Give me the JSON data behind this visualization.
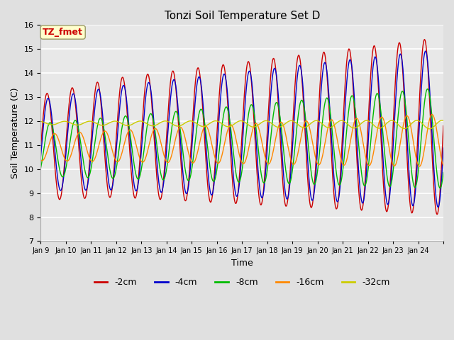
{
  "title": "Tonzi Soil Temperature Set D",
  "xlabel": "Time",
  "ylabel": "Soil Temperature (C)",
  "ylim": [
    7.0,
    16.0
  ],
  "yticks": [
    7.0,
    8.0,
    9.0,
    10.0,
    11.0,
    12.0,
    13.0,
    14.0,
    15.0,
    16.0
  ],
  "colors": {
    "-2cm": "#cc0000",
    "-4cm": "#0000cc",
    "-8cm": "#00bb00",
    "-16cm": "#ff8800",
    "-32cm": "#cccc00"
  },
  "legend_label_box": "TZ_fmet",
  "legend_box_facecolor": "#ffffcc",
  "legend_box_edgecolor": "#aaaaaa",
  "legend_box_textcolor": "#cc0000",
  "xtick_labels": [
    "Jan 9",
    "Jan 10",
    "Jan 11",
    "Jan 12",
    "Jan 13",
    "Jan 14",
    "Jan 15",
    "Jan 16",
    "Jan 17",
    "Jan 18",
    "Jan 19",
    "Jan 20",
    "Jan 21",
    "Jan 22",
    "Jan 23",
    "Jan 24",
    ""
  ],
  "background_color": "#e0e0e0",
  "axes_background": "#e8e8e8",
  "grid_color": "#ffffff",
  "n_days": 16,
  "samples_per_day": 48
}
